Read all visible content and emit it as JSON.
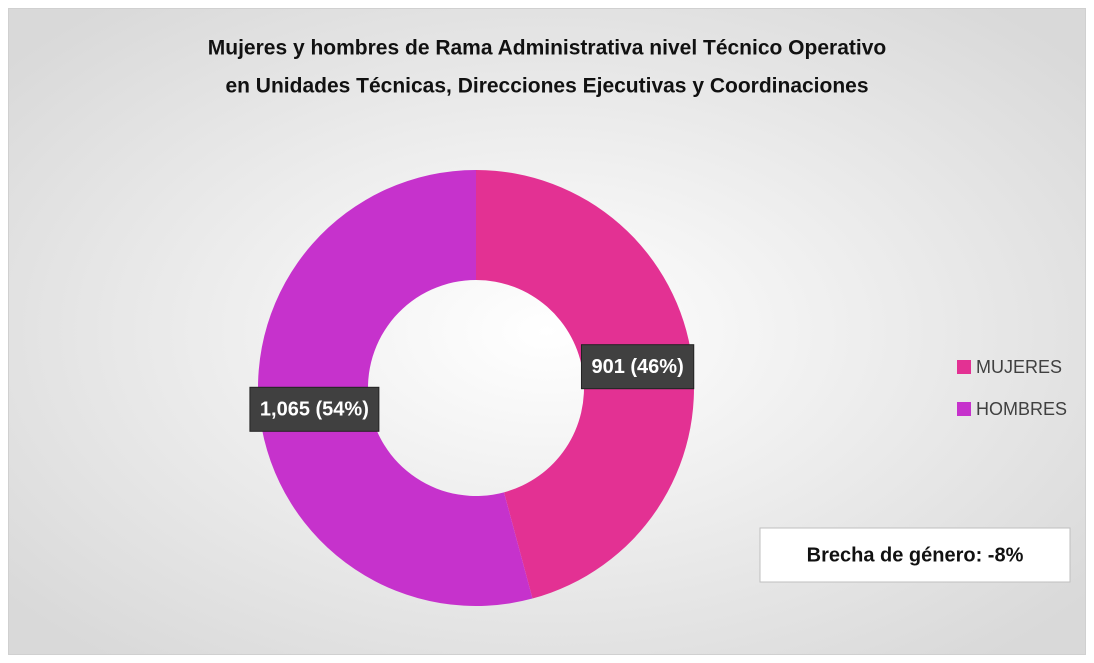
{
  "chart_data": {
    "type": "pie",
    "donut": true,
    "title": [
      "Mujeres y hombres de Rama Administrativa nivel Técnico Operativo",
      "en Unidades Técnicas, Direcciones Ejecutivas y Coordinaciones"
    ],
    "categories": [
      "MUJERES",
      "HOMBRES"
    ],
    "values": [
      901,
      1065
    ],
    "value_labels": [
      "901 (46%)",
      "1,065 (54%)"
    ],
    "colors": [
      "#e33193",
      "#c632cc"
    ],
    "legend": "right",
    "annotation": "Brecha de género:  -8%"
  }
}
